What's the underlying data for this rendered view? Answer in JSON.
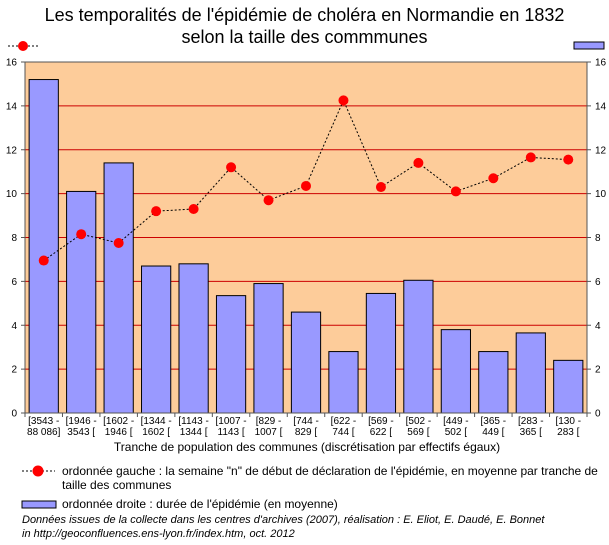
{
  "title_line1": "Les temporalités de l'épidémie de choléra en Normandie en 1832",
  "title_line2": "selon la taille des commmunes",
  "xlabel": "Tranche de population des communes (discrétisation par effectifs égaux)",
  "legend_left": "ordonnée gauche : la semaine \"n\" de début de déclaration de l'épidémie, en moyenne par tranche de taille des communes",
  "legend_right": "ordonnée droite : durée de l'épidémie (en moyenne)",
  "source_line1": "Données issues de la collecte dans les centres d'archives (2007), réalisation : E. Eliot, E. Daudé, E. Bonnet",
  "source_line2": "in http://geoconfluences.ens-lyon.fr/index.htm, oct. 2012",
  "colors": {
    "plot_background": "#fdcc9a",
    "gridline": "#cc0000",
    "bar_fill": "#9999ff",
    "bar_stroke": "#000000",
    "line_marker": "#ff0000",
    "line_dashes": "#000000"
  },
  "chart_data": {
    "type": "bar+line",
    "categories": [
      [
        "[3543 -",
        "88 086]"
      ],
      [
        "[1946 -",
        "3543 ["
      ],
      [
        "[1602 -",
        "1946 ["
      ],
      [
        "[1344 -",
        "1602 ["
      ],
      [
        "[1143 -",
        "1344 ["
      ],
      [
        "[1007 -",
        "1143 ["
      ],
      [
        "[829 -",
        "1007 ["
      ],
      [
        "[744 -",
        "829 ["
      ],
      [
        "[622 -",
        "744 ["
      ],
      [
        "[569 -",
        "622 ["
      ],
      [
        "[502 -",
        "569 ["
      ],
      [
        "[449 -",
        "502 ["
      ],
      [
        "[365 -",
        "449 ["
      ],
      [
        "[283 -",
        "365 ["
      ],
      [
        "[130 -",
        "283 ["
      ]
    ],
    "series": [
      {
        "name": "ordonnée droite : durée de l'épidémie (en moyenne)",
        "type": "bar",
        "axis": "right",
        "values": [
          15.2,
          10.1,
          11.4,
          6.7,
          6.8,
          5.35,
          5.9,
          4.6,
          2.8,
          5.45,
          6.05,
          3.8,
          2.8,
          3.65,
          2.4
        ]
      },
      {
        "name": "ordonnée gauche : la semaine \"n\" de début de déclaration de l'épidémie, en moyenne par tranche de taille des communes",
        "type": "line",
        "axis": "left",
        "values": [
          6.95,
          8.15,
          7.75,
          9.2,
          9.3,
          11.2,
          9.7,
          10.35,
          14.25,
          10.3,
          11.4,
          10.1,
          10.7,
          11.65,
          11.55
        ]
      }
    ],
    "ylim": [
      0,
      16
    ],
    "yticks": [
      "0",
      "2",
      "4",
      "6",
      "8",
      "10",
      "12",
      "14",
      "16"
    ],
    "y2lim": [
      0,
      16
    ],
    "grid": true
  }
}
